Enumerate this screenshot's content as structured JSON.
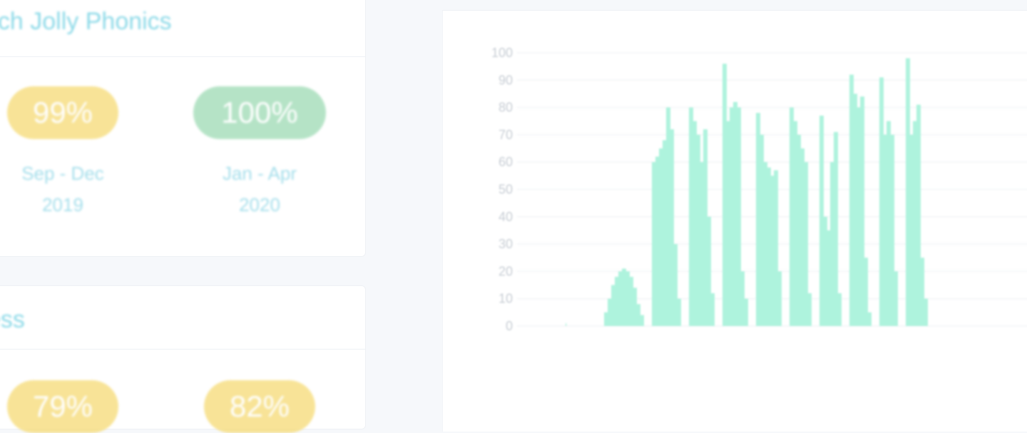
{
  "cards": [
    {
      "title": "ach Jolly Phonics",
      "stats": [
        {
          "value": "99%",
          "period_line1": "Sep - Dec",
          "period_line2": "2019",
          "color": "#f7df85"
        },
        {
          "value": "100%",
          "period_line1": "Jan - Apr",
          "period_line2": "2020",
          "color": "#a9dfbd"
        }
      ]
    },
    {
      "title": "ess",
      "stats": [
        {
          "value": "79%",
          "color": "#f7df85"
        },
        {
          "value": "82%",
          "color": "#f7df85"
        }
      ]
    }
  ],
  "chart_data": {
    "type": "bar",
    "ylim": [
      0,
      100
    ],
    "yticks": [
      "0",
      "10",
      "20",
      "30",
      "40",
      "50",
      "60",
      "70",
      "80",
      "90",
      "100"
    ],
    "bar_color": "#aef3dd",
    "grid": true,
    "groups": [
      [
        0,
        0,
        0,
        0,
        0,
        0,
        0,
        0,
        0,
        0,
        0,
        0,
        0,
        0,
        0,
        0,
        0,
        0,
        0,
        0,
        0,
        0,
        0,
        0,
        0,
        0,
        0,
        0,
        1,
        0,
        0,
        0,
        0,
        0,
        0,
        0,
        0,
        0,
        0,
        0,
        0,
        0,
        0,
        0,
        0,
        0,
        0,
        0,
        0
      ],
      [
        5,
        10,
        15,
        18,
        20,
        21,
        20,
        18,
        14,
        8,
        4
      ],
      [
        60,
        62,
        65,
        68,
        80,
        72,
        30,
        10
      ],
      [
        80,
        75,
        70,
        60,
        72,
        40,
        12
      ],
      [
        96,
        75,
        80,
        82,
        80,
        20,
        10
      ],
      [
        78,
        70,
        60,
        58,
        55,
        57,
        20
      ],
      [
        80,
        75,
        70,
        65,
        60,
        12
      ],
      [
        77,
        40,
        35,
        60,
        71,
        12
      ],
      [
        92,
        85,
        80,
        84,
        25,
        5
      ],
      [
        91,
        70,
        75,
        70,
        20
      ],
      [
        98,
        70,
        75,
        81,
        25,
        10
      ]
    ]
  }
}
